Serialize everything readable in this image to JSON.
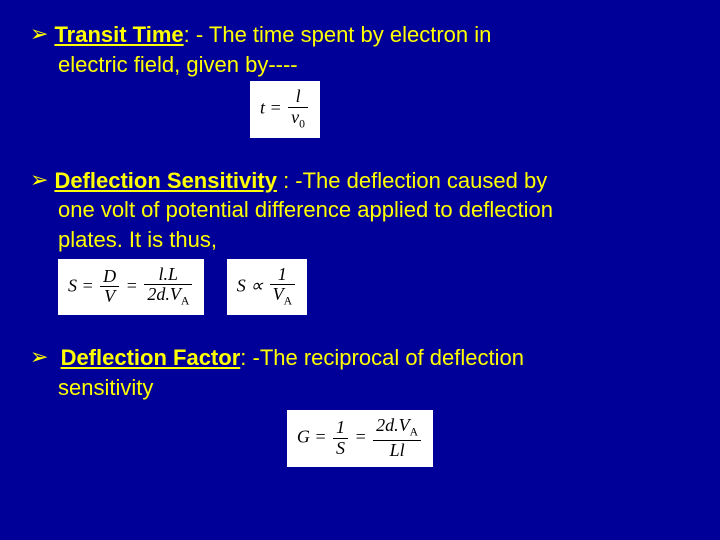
{
  "background_color": "#000099",
  "text_color": "#ffff00",
  "formula_bg": "#ffffff",
  "formula_fg": "#000000",
  "font_family": "Arial",
  "formula_font": "Times New Roman",
  "body_fontsize": 22,
  "items": [
    {
      "term": "Transit Time",
      "tail": ": - The time spent by electron in",
      "cont": "electric field, given by----",
      "formula": {
        "lhs": "t",
        "num": "l",
        "den_main": "v",
        "den_sub": "0"
      }
    },
    {
      "term": "Deflection Sensitivity",
      "tail": " : -The deflection caused by",
      "cont1": "one volt of potential difference applied to deflection",
      "cont2": "plates. It is thus,",
      "formulaA": {
        "lhs": "S",
        "f1_num": "D",
        "f1_den": "V",
        "f2_num": "l.L",
        "f2_den_a": "2d.V",
        "f2_den_sub": "A"
      },
      "formulaB": {
        "lhs": "S",
        "rel": "∝",
        "num": "1",
        "den_main": "V",
        "den_sub": "A"
      }
    },
    {
      "term": "Deflection Factor",
      "tail": ": -The reciprocal of deflection",
      "cont": "sensitivity",
      "formula": {
        "lhs": "G",
        "f1_num": "1",
        "f1_den": "S",
        "f2_num_a": "2d.V",
        "f2_num_sub": "A",
        "f2_den": "Ll"
      }
    }
  ]
}
